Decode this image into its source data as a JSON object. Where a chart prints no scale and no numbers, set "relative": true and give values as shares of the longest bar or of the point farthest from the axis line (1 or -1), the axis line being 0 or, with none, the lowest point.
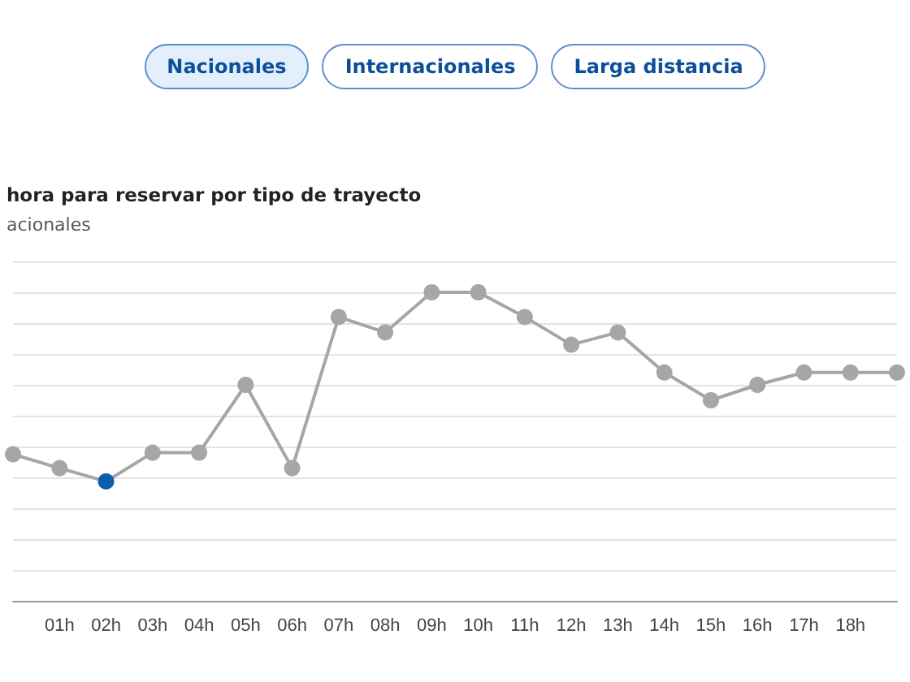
{
  "chart_data": {
    "type": "line",
    "title": "hora para reservar por tipo de trayecto",
    "subtitle": "acionales",
    "annotations": [
      "Nacionales",
      "Internacionales",
      "Larga distancia"
    ],
    "categories": [
      null,
      "01h",
      "02h",
      "03h",
      "04h",
      "05h",
      "06h",
      "07h",
      "08h",
      "09h",
      "10h",
      "11h",
      "12h",
      "13h",
      "14h",
      "15h",
      "16h",
      "17h",
      "18h",
      null
    ],
    "series": [
      {
        "color": "#a6a6a6",
        "colors": [
          "#a6a6a6",
          "#a6a6a6",
          "#0a5eb0",
          "#a6a6a6",
          "#a6a6a6",
          "#a6a6a6",
          "#a6a6a6",
          "#a6a6a6",
          "#a6a6a6",
          "#a6a6a6",
          "#a6a6a6",
          "#a6a6a6",
          "#a6a6a6",
          "#a6a6a6",
          "#a6a6a6",
          "#a6a6a6",
          "#a6a6a6",
          "#a6a6a6",
          "#a6a6a6",
          "#a6a6a6"
        ],
        "values": [
          0.475,
          0.43,
          0.387,
          0.48,
          0.48,
          0.7,
          0.43,
          0.92,
          0.87,
          1,
          1,
          0.92,
          0.83,
          0.87,
          0.74,
          0.65,
          0.7,
          0.74,
          0.74,
          0.74
        ]
      }
    ],
    "relative": true,
    "grid": "y",
    "marker": "circle",
    "line_style": "solid"
  }
}
